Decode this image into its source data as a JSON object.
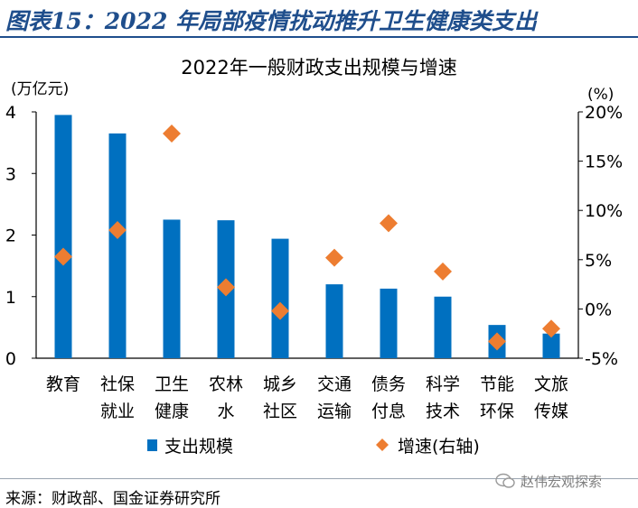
{
  "header": {
    "title": "图表15：2022 年局部疫情扰动推升卫生健康类支出"
  },
  "source_note": "来源：财政部、国金证券研究所",
  "watermark": {
    "text": "赵伟宏观探索",
    "icon": "wechat-icon"
  },
  "colors": {
    "bar": "#0070c0",
    "marker": "#ed7d31",
    "header": "#1f4e8c"
  },
  "chart_data": {
    "type": "bar",
    "title": "2022年一般财政支出规模与增速",
    "categories": [
      [
        "教育"
      ],
      [
        "社保",
        "就业"
      ],
      [
        "卫生",
        "健康"
      ],
      [
        "农林",
        "水"
      ],
      [
        "城乡",
        "社区"
      ],
      [
        "交通",
        "运输"
      ],
      [
        "债务",
        "付息"
      ],
      [
        "科学",
        "技术"
      ],
      [
        "节能",
        "环保"
      ],
      [
        "文旅",
        "传媒"
      ]
    ],
    "left_axis": {
      "unit": "(万亿元)",
      "min": 0,
      "max": 4,
      "ticks": [
        "0",
        "1",
        "2",
        "3",
        "4"
      ]
    },
    "right_axis": {
      "unit": "(%)",
      "min": -5,
      "max": 20,
      "ticks": [
        "-5%",
        "0%",
        "5%",
        "10%",
        "15%",
        "20%"
      ]
    },
    "series": [
      {
        "name": "支出规模",
        "type": "bar",
        "axis": "left",
        "values": [
          3.95,
          3.65,
          2.25,
          2.24,
          1.94,
          1.2,
          1.13,
          1.0,
          0.54,
          0.4
        ]
      },
      {
        "name": "增速(右轴)",
        "type": "scatter",
        "axis": "right",
        "values": [
          5.3,
          8.0,
          17.8,
          2.2,
          -0.2,
          5.2,
          8.7,
          3.8,
          -3.3,
          -2.0
        ]
      }
    ],
    "legend": "bottom"
  }
}
